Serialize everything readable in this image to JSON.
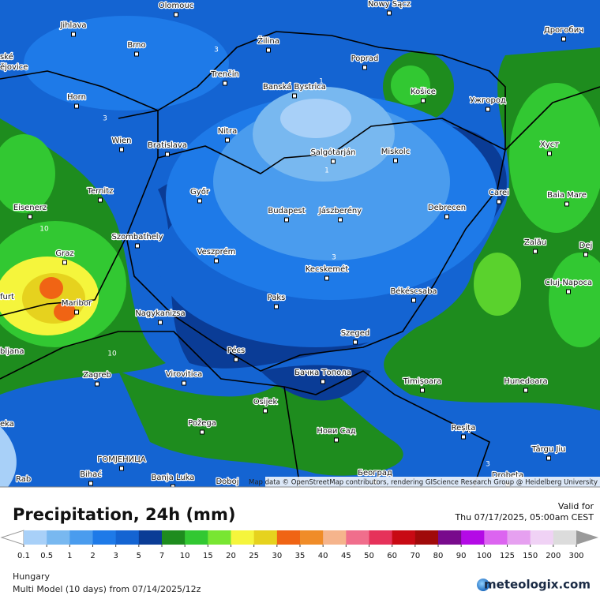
{
  "map": {
    "cities": [
      "Olomouc",
      "Nowy Sącz",
      "Jihlava",
      "Brno",
      "Žilina",
      "Poprad",
      "Дрогобич",
      "Trenčín",
      "Banská Bystrica",
      "Košice",
      "Ужгород",
      "Horn",
      "Wien",
      "Bratislava",
      "Nitra",
      "Salgótarján",
      "Miskolc",
      "Хуст",
      "Ternitz",
      "Győr",
      "Carei",
      "Baia Mare",
      "Eisenerz",
      "Budapest",
      "Jászberény",
      "Debrecen",
      "Szombathely",
      "Zalău",
      "Dej",
      "Graz",
      "Veszprém",
      "Kecskemét",
      "Cluj-Napoca",
      "Maribor",
      "Paks",
      "Békéscsaba",
      "Nagykanizsa",
      "Pécs",
      "Szeged",
      "Бачка Топола",
      "Zagreb",
      "Virovitica",
      "Timișoara",
      "Hunedoara",
      "Osijek",
      "Požega",
      "Reșița",
      "Нови Сад",
      "Târgu Jiu",
      "ГОМЈЕНИЦА",
      "Bihać",
      "Banja Luka",
      "Doboj",
      "Београд",
      "Drobeta"
    ],
    "partial_labels": [
      "ské",
      "ějovice",
      "furt",
      "bljana",
      "eka",
      "Rab"
    ],
    "contour_labels": [
      "3",
      "1",
      "3",
      "1",
      "3",
      "10",
      "10",
      "3"
    ],
    "attribution": "Map data © OpenStreetMap contributors, rendering GIScience Research Group @ Heidelberg University"
  },
  "header": {
    "title": "Precipitation, 24h (mm)",
    "valid_label": "Valid for",
    "valid_time": "Thu 07/17/2025, 05:00am CEST"
  },
  "legend": {
    "ticks": [
      "0.1",
      "0.5",
      "1",
      "2",
      "3",
      "5",
      "7",
      "10",
      "15",
      "20",
      "25",
      "30",
      "35",
      "40",
      "45",
      "50",
      "60",
      "70",
      "80",
      "90",
      "100",
      "125",
      "150",
      "200",
      "300"
    ],
    "colors": [
      "#a8d0f8",
      "#78b8f0",
      "#4a9cee",
      "#1e7ae8",
      "#1464d2",
      "#0a3c96",
      "#1e8c1e",
      "#32c832",
      "#78e632",
      "#f5f53c",
      "#e6d21e",
      "#f06414",
      "#f08c28",
      "#f5b48c",
      "#f06e8c",
      "#e6325a",
      "#c80a14",
      "#a00a0a",
      "#780a8c",
      "#b40ae6",
      "#dc64f0",
      "#e6a0f0",
      "#f0d2f5",
      "#dcdcdc"
    ],
    "below_color": "#ffffff",
    "above_color": "#9a9a9a"
  },
  "footer": {
    "region": "Hungary",
    "model": "Multi Model (10 days) from  07/14/2025/12z",
    "brand": "meteologix.com"
  }
}
